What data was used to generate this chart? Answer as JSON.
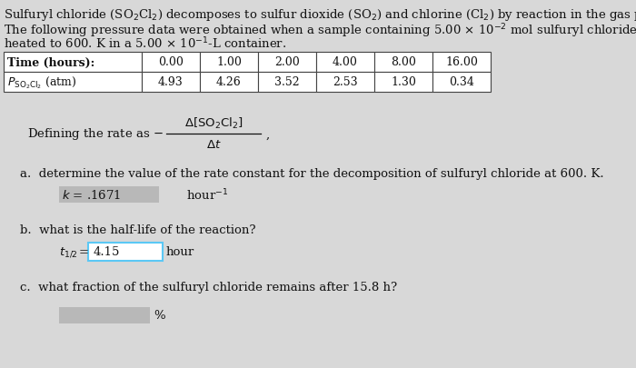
{
  "bg_color": "#d8d8d8",
  "text_color": "#111111",
  "white": "#ffffff",
  "table_border": "#444444",
  "answer_box_gray": "#b8b8b8",
  "t_box_color": "#5bc8f5",
  "font_size": 9.5,
  "font_size_small": 7.5,
  "font_size_table": 9.0,
  "line1": "Sulfuryl chloride (SO",
  "line1b": "2",
  "line1c": "Cl",
  "line1d": "2",
  "line1e": ") decomposes to sulfur dioxide (SO",
  "line1f": "2",
  "line1g": ") and chlorine (Cl",
  "line1h": "2",
  "line1i": ") by reaction in the gas phase.",
  "line2a": "The following pressure data were obtained when a sample containing 5.00 × 10",
  "line2b": "−2",
  "line2c": " mol sulfuryl chloride was",
  "line3a": "heated to 600. K in a 5.00 × 10",
  "line3b": "−1",
  "line3c": "-L container.",
  "time_header": "Time (hours):",
  "time_vals": [
    "0.00",
    "1.00",
    "2.00",
    "4.00",
    "8.00",
    "16.00"
  ],
  "pso2_vals": [
    "4.93",
    "4.26",
    "3.52",
    "2.53",
    "1.30",
    "0.34"
  ],
  "qa": "a.  determine the value of the rate constant for the decomposition of sulfuryl chloride at 600. K.",
  "k_text": "k = .1671",
  "hour_inv": "hour",
  "qb": "b.  what is the half-life of the reaction?",
  "t_val": "4.15",
  "qc": "c.  what fraction of the sulfuryl chloride remains after 15.8 h?",
  "pct": "%"
}
